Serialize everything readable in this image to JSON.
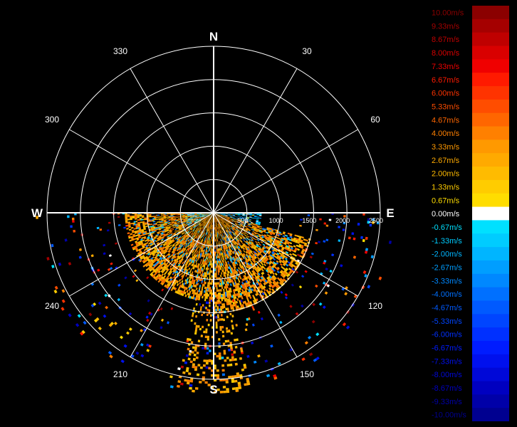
{
  "chart_data": {
    "type": "polar-scatter",
    "cardinals": [
      "N",
      "E",
      "S",
      "W"
    ],
    "bearing_labels": [
      "30",
      "60",
      "120",
      "150",
      "210",
      "240",
      "300",
      "330"
    ],
    "range_labels": [
      "500",
      "1000",
      "1500",
      "2000",
      "2500"
    ],
    "range_max": 2500,
    "legend": {
      "labels": [
        "10.00m/s",
        "9.33m/s",
        "8.67m/s",
        "8.00m/s",
        "7.33m/s",
        "6.67m/s",
        "6.00m/s",
        "5.33m/s",
        "4.67m/s",
        "4.00m/s",
        "3.33m/s",
        "2.67m/s",
        "2.00m/s",
        "1.33m/s",
        "0.67m/s",
        "0.00m/s",
        "-0.67m/s",
        "-1.33m/s",
        "-2.00m/s",
        "-2.67m/s",
        "-3.33m/s",
        "-4.00m/s",
        "-4.67m/s",
        "-5.33m/s",
        "-6.00m/s",
        "-6.67m/s",
        "-7.33m/s",
        "-8.00m/s",
        "-8.67m/s",
        "-9.33m/s",
        "-10.00m/s"
      ],
      "colors": [
        "#8b0000",
        "#a50000",
        "#bf0000",
        "#d90000",
        "#f00000",
        "#ff1a00",
        "#ff3300",
        "#ff4d00",
        "#ff6600",
        "#ff8000",
        "#ff9900",
        "#ffaa00",
        "#ffbb00",
        "#ffcc00",
        "#ffdd00",
        "#ffffff",
        "#00e0ff",
        "#00ccff",
        "#00b5ff",
        "#009eff",
        "#0088ff",
        "#0070ff",
        "#005aff",
        "#0045ff",
        "#0030ff",
        "#001cff",
        "#0010ee",
        "#0008d8",
        "#0000c0",
        "#0000a8",
        "#000090"
      ]
    },
    "wedges": [
      {
        "az_from": 90,
        "az_to": 105,
        "r_from": 0,
        "r_to": 700,
        "vmin": -3.3,
        "vmax": 0.7,
        "density": 0.55
      },
      {
        "az_from": 105,
        "az_to": 180,
        "r_from": 0,
        "r_to": 1500,
        "vmin": 1.3,
        "vmax": 4.7,
        "density": 0.6
      },
      {
        "az_from": 105,
        "az_to": 180,
        "r_from": 300,
        "r_to": 1300,
        "vmin": -4.7,
        "vmax": -0.7,
        "density": 0.1
      },
      {
        "az_from": 180,
        "az_to": 270,
        "r_from": 0,
        "r_to": 1300,
        "vmin": 1.3,
        "vmax": 4.7,
        "density": 0.62
      },
      {
        "az_from": 180,
        "az_to": 270,
        "r_from": 200,
        "r_to": 1200,
        "vmin": -4.0,
        "vmax": -0.7,
        "density": 0.08
      },
      {
        "az_from": 240,
        "az_to": 270,
        "r_from": 0,
        "r_to": 400,
        "vmin": -2.7,
        "vmax": 0.7,
        "density": 0.5
      },
      {
        "az_from": 90,
        "az_to": 270,
        "r_from": 1300,
        "r_to": 2700,
        "vmin": -10,
        "vmax": 10,
        "density": 0.045
      },
      {
        "az_from": 168,
        "az_to": 192,
        "r_from": 1200,
        "r_to": 2700,
        "vmin": 1.3,
        "vmax": 4.0,
        "density": 0.22
      }
    ]
  }
}
